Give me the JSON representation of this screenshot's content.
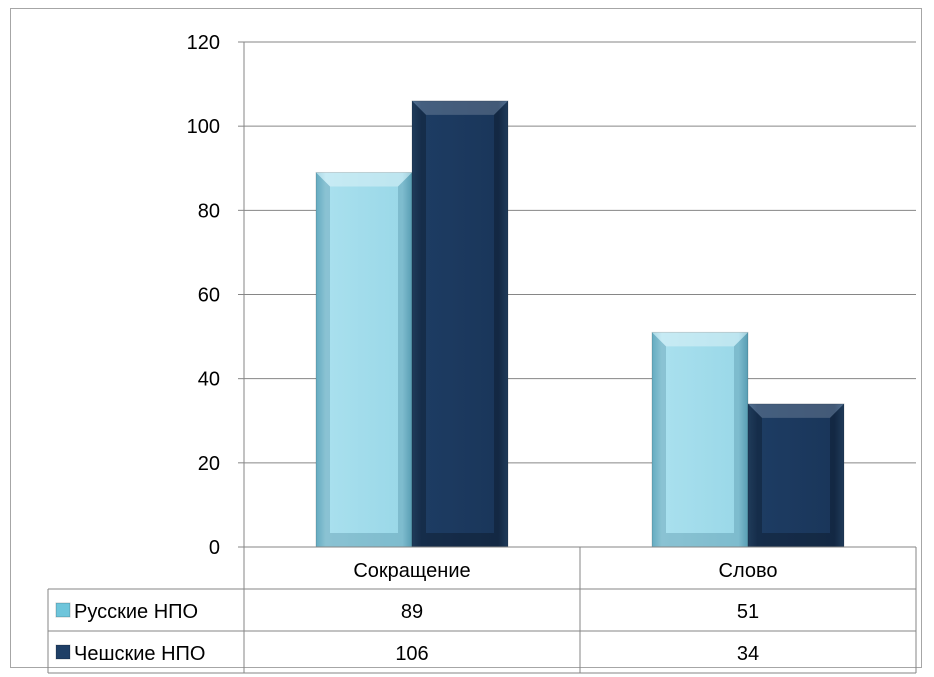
{
  "chart_data": {
    "type": "bar",
    "title": "",
    "xlabel": "",
    "ylabel": "",
    "categories": [
      "Сокращение",
      "Слово"
    ],
    "series": [
      {
        "name": "Русские НПО",
        "values": [
          89,
          51
        ],
        "color": "#92d5e6"
      },
      {
        "name": "Чешские НПО",
        "values": [
          106,
          34
        ],
        "color": "#1f3f66"
      }
    ],
    "ylim": [
      0,
      120
    ],
    "yticks": [
      0,
      20,
      40,
      60,
      80,
      100,
      120
    ],
    "grid": true,
    "legend": "data-table-left",
    "data_table": true
  }
}
